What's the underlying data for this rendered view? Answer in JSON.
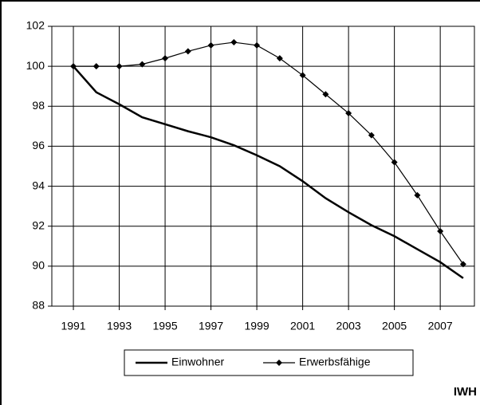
{
  "chart_data": {
    "type": "line",
    "x": [
      1991,
      1992,
      1993,
      1994,
      1995,
      1996,
      1997,
      1998,
      1999,
      2000,
      2001,
      2002,
      2003,
      2004,
      2005,
      2006,
      2007,
      2008
    ],
    "series": [
      {
        "name": "Einwohner",
        "color": "#000000",
        "marker": "none",
        "values": [
          100,
          98.7,
          98.1,
          97.45,
          97.1,
          96.75,
          96.45,
          96.05,
          95.55,
          95.0,
          94.25,
          93.4,
          92.7,
          92.05,
          91.5,
          90.85,
          90.2,
          89.4
        ]
      },
      {
        "name": "Erwerbsfähige",
        "color": "#000000",
        "marker": "diamond",
        "values": [
          100,
          100,
          100,
          100.1,
          100.4,
          100.75,
          101.05,
          101.2,
          101.05,
          100.4,
          99.55,
          98.6,
          97.65,
          96.55,
          95.2,
          93.55,
          91.75,
          90.1
        ]
      }
    ],
    "xlim": [
      1990.06,
      2008.49
    ],
    "xticks": [
      1991,
      1993,
      1995,
      1997,
      1999,
      2001,
      2003,
      2005,
      2007
    ],
    "ylim": [
      88,
      102
    ],
    "yticks": [
      88,
      90,
      92,
      94,
      96,
      98,
      100,
      102
    ],
    "grid": true,
    "legend": "bottom",
    "source": "IWH"
  }
}
